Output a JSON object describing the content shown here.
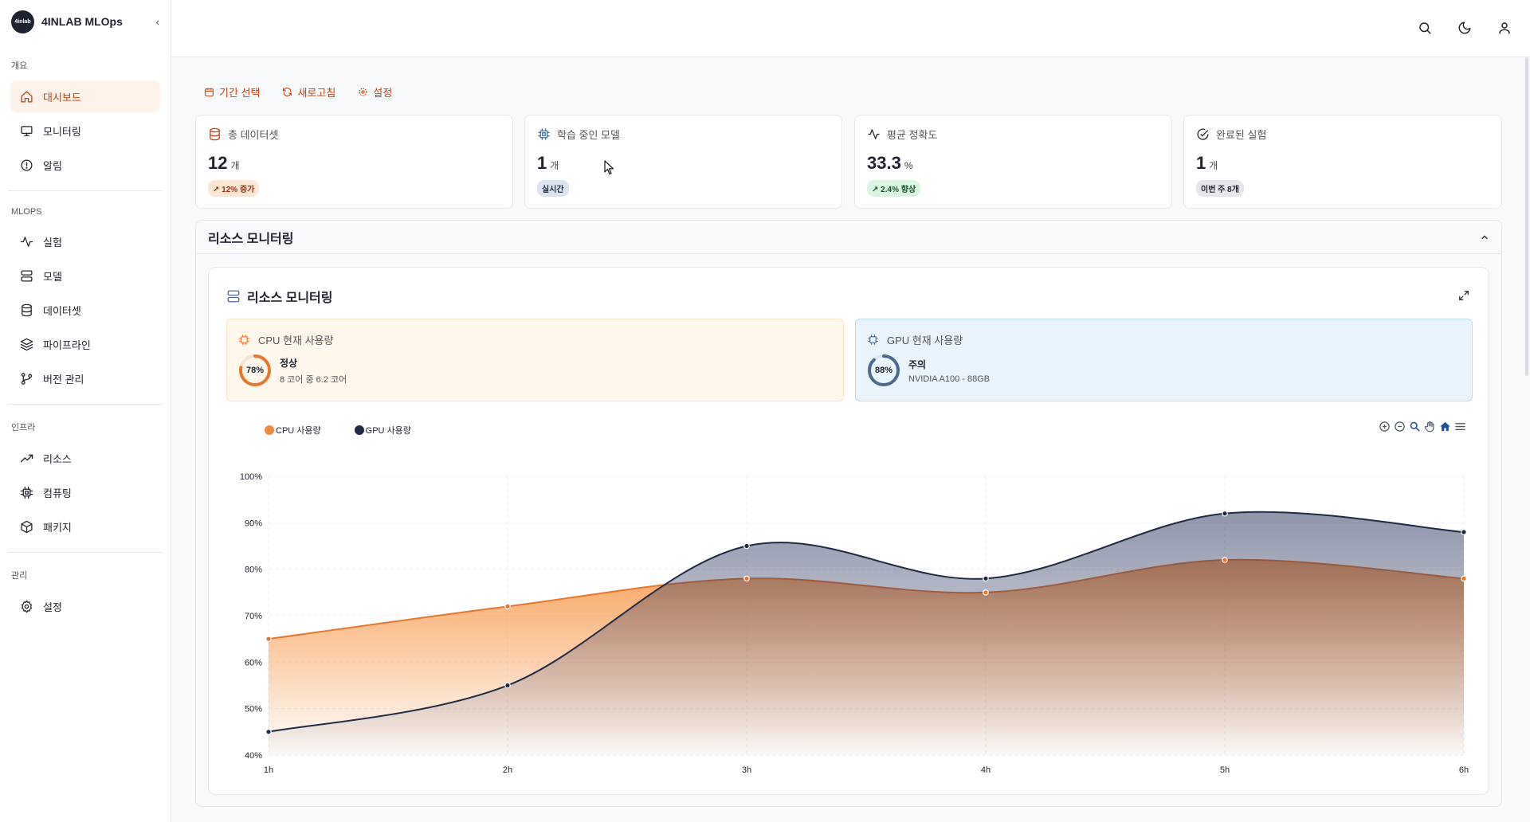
{
  "brand": {
    "logo_text": "4inlab",
    "name": "4INLAB MLOps",
    "collapse_glyph": "‹"
  },
  "sidebar": {
    "sections": [
      {
        "title": "개요",
        "items": [
          {
            "label": "대시보드",
            "icon": "home-icon",
            "active": true
          },
          {
            "label": "모니터링",
            "icon": "monitor-icon"
          },
          {
            "label": "알림",
            "icon": "alert-icon"
          }
        ]
      },
      {
        "title": "MLOPS",
        "items": [
          {
            "label": "실험",
            "icon": "activity-icon"
          },
          {
            "label": "모델",
            "icon": "server-icon"
          },
          {
            "label": "데이터셋",
            "icon": "database-icon"
          },
          {
            "label": "파이프라인",
            "icon": "layers-icon"
          },
          {
            "label": "버전 관리",
            "icon": "git-branch-icon"
          }
        ]
      },
      {
        "title": "인프라",
        "items": [
          {
            "label": "리소스",
            "icon": "trending-up-icon"
          },
          {
            "label": "컴퓨팅",
            "icon": "cpu-icon"
          },
          {
            "label": "패키지",
            "icon": "package-icon"
          }
        ]
      },
      {
        "title": "관리",
        "items": [
          {
            "label": "설정",
            "icon": "settings-icon"
          }
        ]
      }
    ]
  },
  "header": {
    "icons": [
      "search-icon",
      "moon-icon",
      "user-icon"
    ]
  },
  "toolbar": {
    "period_label": "기간 선택",
    "refresh_label": "새로고침",
    "settings_label": "설정"
  },
  "stats": [
    {
      "title": "총 데이터셋",
      "value": "12",
      "unit": "개",
      "badge": "12% 증가",
      "badge_arrow": "↗",
      "icon": "database-icon",
      "badge_style": "orange"
    },
    {
      "title": "학습 중인 모델",
      "value": "1",
      "unit": "개",
      "badge": "실시간",
      "badge_arrow": "",
      "icon": "cpu-icon",
      "badge_style": "blue"
    },
    {
      "title": "평균 정확도",
      "value": "33.3",
      "unit": "%",
      "badge": "2.4% 향상",
      "badge_arrow": "↗",
      "icon": "activity-icon",
      "badge_style": "green"
    },
    {
      "title": "완료된 실험",
      "value": "1",
      "unit": "개",
      "badge": "이번 주 8개",
      "badge_arrow": "",
      "icon": "check-circle-icon",
      "badge_style": "gray"
    }
  ],
  "resource_section": {
    "title": "리소스 모니터링",
    "card_title": "리소스 모니터링",
    "cpu": {
      "title": "CPU 현재 사용량",
      "percent": 78,
      "percent_label": "78%",
      "status": "정상",
      "detail": "8 코어 중 6.2 코어",
      "color": "#e8772e"
    },
    "gpu": {
      "title": "GPU 현재 사용량",
      "percent": 88,
      "percent_label": "88%",
      "status": "주의",
      "detail": "NVIDIA A100 - 88GB",
      "color": "#4a6b8f"
    }
  },
  "chart_data": {
    "type": "area",
    "x": [
      "1h",
      "2h",
      "3h",
      "4h",
      "5h",
      "6h"
    ],
    "series": [
      {
        "name": "CPU 사용량",
        "values": [
          65,
          72,
          78,
          75,
          82,
          78
        ],
        "color": "#f08a3e"
      },
      {
        "name": "GPU 사용량",
        "values": [
          45,
          55,
          85,
          78,
          92,
          88
        ],
        "color": "#1f2a44"
      }
    ],
    "ylim": [
      40,
      100
    ],
    "yticks": [
      "40%",
      "50%",
      "60%",
      "70%",
      "80%",
      "90%",
      "100%"
    ],
    "grid": true,
    "legend": "top-left"
  }
}
